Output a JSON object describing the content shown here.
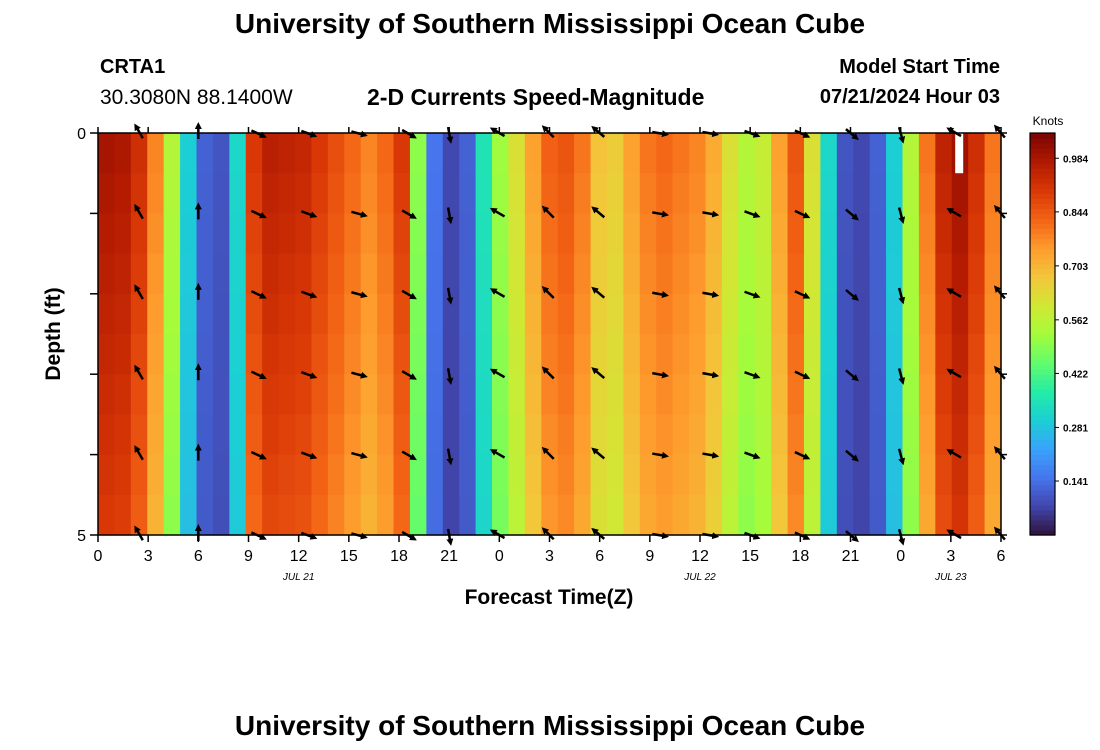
{
  "page": {
    "title_top": "University of Southern Mississippi Ocean Cube",
    "title_bottom": "University of Southern Mississippi Ocean Cube",
    "station_id": "CRTA1",
    "coordinates": "30.3080N  88.1400W",
    "subtitle": "2-D Currents Speed-Magnitude",
    "model_start_label": "Model Start Time",
    "model_start_value": "07/21/2024 Hour 03"
  },
  "chart_data": {
    "type": "heatmap",
    "title": "2-D Currents Speed-Magnitude",
    "xlabel": "Forecast Time(Z)",
    "ylabel": "Depth (ft)",
    "x_range": [
      0,
      54
    ],
    "y_range": [
      0,
      5
    ],
    "x_tick_values": [
      0,
      3,
      6,
      9,
      12,
      15,
      18,
      21,
      24,
      27,
      30,
      33,
      36,
      39,
      42,
      45,
      48,
      51,
      54
    ],
    "x_tick_labels": [
      "0",
      "3",
      "6",
      "9",
      "12",
      "15",
      "18",
      "21",
      "0",
      "3",
      "6",
      "9",
      "12",
      "15",
      "18",
      "21",
      "0",
      "3",
      "6"
    ],
    "y_tick_labels": [
      {
        "value": 0,
        "label": "0"
      },
      {
        "value": 5,
        "label": "5"
      }
    ],
    "y_minor_ticks": [
      1,
      2,
      3,
      4
    ],
    "date_labels": [
      {
        "hour": 12,
        "label": "JUL 21"
      },
      {
        "hour": 36,
        "label": "JUL 22"
      },
      {
        "hour": 51,
        "label": "JUL 23"
      }
    ],
    "colorbar": {
      "title": "Knots",
      "range": [
        0,
        1.05
      ],
      "tick_values": [
        0.141,
        0.281,
        0.422,
        0.562,
        0.703,
        0.844,
        0.984
      ],
      "tick_labels": [
        "0.141",
        "0.281",
        "0.422",
        "0.562",
        "0.703",
        "0.844",
        "0.984"
      ],
      "colors": [
        "#30123b",
        "#4145ab",
        "#4675ed",
        "#39a2fc",
        "#1bcfd4",
        "#24eca6",
        "#61fc6c",
        "#a4fc3b",
        "#d1e834",
        "#f3c63a",
        "#fe9b2d",
        "#f36315",
        "#d93806",
        "#b11901",
        "#7a0403"
      ]
    },
    "speed_profile": {
      "hours": [
        0,
        1,
        2,
        3,
        4,
        5,
        6,
        7,
        8,
        9,
        10,
        11,
        12,
        13,
        14,
        15,
        16,
        17,
        18,
        19,
        20,
        21,
        22,
        23,
        24,
        25,
        26,
        27,
        28,
        29,
        30,
        31,
        32,
        33,
        34,
        35,
        36,
        37,
        38,
        39,
        40,
        41,
        42,
        43,
        44,
        45,
        46,
        47,
        48,
        49,
        50,
        51,
        52,
        53,
        54
      ],
      "surface_knots": [
        0.99,
        0.98,
        0.92,
        0.78,
        0.55,
        0.3,
        0.12,
        0.1,
        0.32,
        0.9,
        0.96,
        0.95,
        0.94,
        0.9,
        0.86,
        0.82,
        0.78,
        0.82,
        0.9,
        0.5,
        0.15,
        0.08,
        0.12,
        0.35,
        0.52,
        0.62,
        0.74,
        0.83,
        0.85,
        0.8,
        0.68,
        0.66,
        0.74,
        0.8,
        0.82,
        0.8,
        0.78,
        0.72,
        0.62,
        0.55,
        0.58,
        0.74,
        0.85,
        0.62,
        0.32,
        0.1,
        0.08,
        0.12,
        0.3,
        0.55,
        0.8,
        0.95,
        1.0,
        0.92,
        0.8
      ],
      "depth_factor": [
        1.0,
        0.99,
        0.98,
        0.97,
        0.96,
        0.95,
        0.94,
        0.93,
        0.92,
        0.91
      ]
    },
    "masked_cells": [
      {
        "hour": 51.5,
        "depth_bin": 0
      }
    ],
    "vector_depths": [
      0,
      1,
      2,
      3,
      4,
      5
    ],
    "vectors": [
      {
        "hour": 2.5,
        "dir": 330
      },
      {
        "hour": 6,
        "dir": 0
      },
      {
        "hour": 9.5,
        "dir": 115
      },
      {
        "hour": 12.5,
        "dir": 110
      },
      {
        "hour": 15.5,
        "dir": 105
      },
      {
        "hour": 18.5,
        "dir": 120
      },
      {
        "hour": 21,
        "dir": 170
      },
      {
        "hour": 24,
        "dir": 300
      },
      {
        "hour": 27,
        "dir": 315
      },
      {
        "hour": 30,
        "dir": 310
      },
      {
        "hour": 33.5,
        "dir": 100
      },
      {
        "hour": 36.5,
        "dir": 100
      },
      {
        "hour": 39,
        "dir": 110
      },
      {
        "hour": 42,
        "dir": 115
      },
      {
        "hour": 45,
        "dir": 130
      },
      {
        "hour": 48,
        "dir": 165
      },
      {
        "hour": 51.3,
        "dir": 300
      },
      {
        "hour": 54,
        "dir": 320
      }
    ]
  }
}
